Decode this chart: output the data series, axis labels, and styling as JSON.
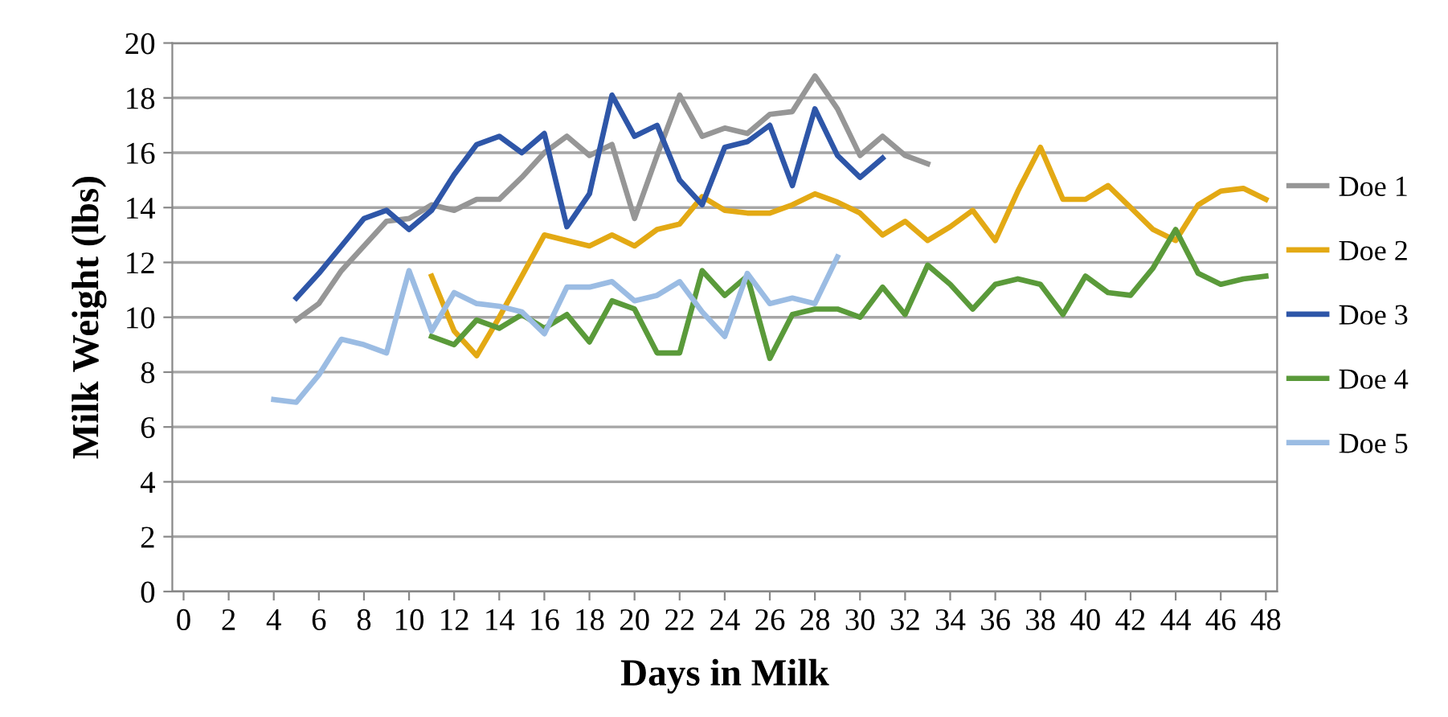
{
  "chart_data": {
    "type": "line",
    "xlabel": "Days in Milk",
    "ylabel": "Milk Weight (lbs)",
    "xlim": [
      -0.5,
      48.5
    ],
    "xticks": [
      0,
      2,
      4,
      6,
      8,
      10,
      12,
      14,
      16,
      18,
      20,
      22,
      24,
      26,
      28,
      30,
      32,
      34,
      36,
      38,
      40,
      42,
      44,
      46,
      48
    ],
    "ylim": [
      0,
      20
    ],
    "yticks": [
      0,
      2,
      4,
      6,
      8,
      10,
      12,
      14,
      16,
      18,
      20
    ],
    "grid": "y",
    "legend": "right",
    "marker": "none",
    "line_style": "solid",
    "series": [
      {
        "name": "Doe 1",
        "color": "#969696",
        "x": [
          5,
          6,
          7,
          8,
          9,
          10,
          11,
          12,
          13,
          14,
          15,
          16,
          17,
          18,
          19,
          20,
          21,
          22,
          23,
          24,
          25,
          26,
          27,
          28,
          29,
          30,
          31,
          32,
          33
        ],
        "values": [
          9.9,
          10.5,
          11.7,
          12.6,
          13.5,
          13.6,
          14.1,
          13.9,
          14.3,
          14.3,
          15.1,
          16.0,
          16.6,
          15.9,
          16.3,
          13.6,
          15.9,
          18.1,
          16.6,
          16.9,
          16.7,
          17.4,
          17.5,
          18.8,
          17.6,
          15.9,
          16.6,
          15.9,
          15.6
        ]
      },
      {
        "name": "Doe 2",
        "color": "#e3a914",
        "x": [
          11,
          12,
          13,
          14,
          15,
          16,
          17,
          18,
          19,
          20,
          21,
          22,
          23,
          24,
          25,
          26,
          27,
          28,
          29,
          30,
          31,
          32,
          33,
          34,
          35,
          36,
          37,
          38,
          39,
          40,
          41,
          42,
          43,
          44,
          45,
          46,
          47,
          48
        ],
        "values": [
          11.5,
          9.5,
          8.6,
          10.0,
          11.5,
          13.0,
          12.8,
          12.6,
          13.0,
          12.6,
          13.2,
          13.4,
          14.4,
          13.9,
          13.8,
          13.8,
          14.1,
          14.5,
          14.2,
          13.8,
          13.0,
          13.5,
          12.8,
          13.3,
          13.9,
          12.8,
          14.6,
          16.2,
          14.3,
          14.3,
          14.8,
          14.0,
          13.2,
          12.8,
          14.1,
          14.6,
          14.7,
          14.3
        ]
      },
      {
        "name": "Doe 3",
        "color": "#2e56a8",
        "x": [
          5,
          6,
          7,
          8,
          9,
          10,
          11,
          12,
          13,
          14,
          15,
          16,
          17,
          18,
          19,
          20,
          21,
          22,
          23,
          24,
          25,
          26,
          27,
          28,
          29,
          30,
          31
        ],
        "values": [
          10.7,
          11.6,
          12.6,
          13.6,
          13.9,
          13.2,
          13.9,
          15.2,
          16.3,
          16.6,
          16.0,
          16.7,
          13.3,
          14.5,
          18.1,
          16.6,
          17.0,
          15.0,
          14.1,
          16.2,
          16.4,
          17.0,
          14.8,
          17.6,
          15.9,
          15.1,
          15.8
        ]
      },
      {
        "name": "Doe 4",
        "color": "#5a9a3a",
        "x": [
          11,
          12,
          13,
          14,
          15,
          16,
          17,
          18,
          19,
          20,
          21,
          22,
          23,
          24,
          25,
          26,
          27,
          28,
          29,
          30,
          31,
          32,
          33,
          34,
          35,
          36,
          37,
          38,
          39,
          40,
          41,
          42,
          43,
          44,
          45,
          46,
          47,
          48
        ],
        "values": [
          9.3,
          9.0,
          9.9,
          9.6,
          10.1,
          9.6,
          10.1,
          9.1,
          10.6,
          10.3,
          8.7,
          8.7,
          11.7,
          10.8,
          11.5,
          8.5,
          10.1,
          10.3,
          10.3,
          10.0,
          11.1,
          10.1,
          11.9,
          11.2,
          10.3,
          11.2,
          11.4,
          11.2,
          10.1,
          11.5,
          10.9,
          10.8,
          11.8,
          13.2,
          11.6,
          11.2,
          11.4,
          11.5
        ]
      },
      {
        "name": "Doe 5",
        "color": "#9bbce3",
        "x": [
          4,
          5,
          6,
          7,
          8,
          9,
          10,
          11,
          12,
          13,
          14,
          15,
          16,
          17,
          18,
          19,
          20,
          21,
          22,
          23,
          24,
          25,
          26,
          27,
          28,
          29
        ],
        "values": [
          7.0,
          6.9,
          7.9,
          9.2,
          9.0,
          8.7,
          11.7,
          9.5,
          10.9,
          10.5,
          10.4,
          10.2,
          9.4,
          11.1,
          11.1,
          11.3,
          10.6,
          10.8,
          11.3,
          10.2,
          9.3,
          11.6,
          10.5,
          10.7,
          10.5,
          12.2
        ]
      }
    ]
  }
}
